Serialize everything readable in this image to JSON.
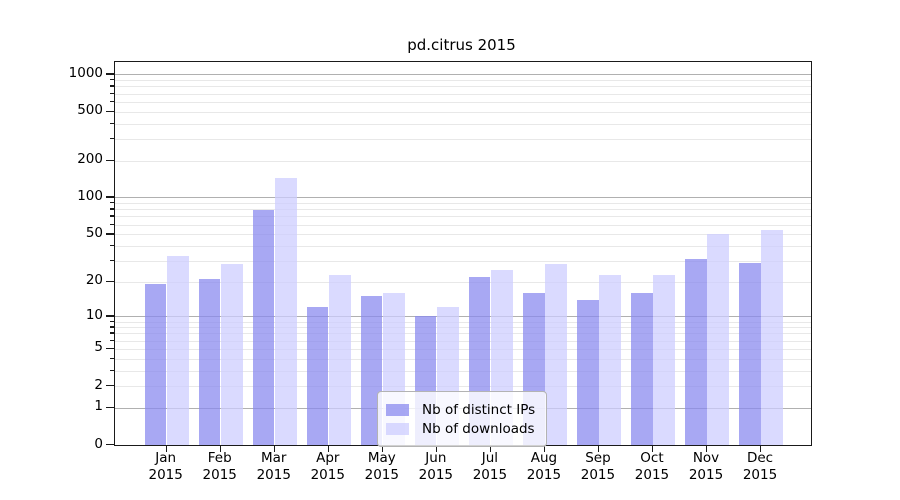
{
  "chart_data": {
    "type": "bar",
    "title": "pd.citrus 2015",
    "categories": [
      "Jan 2015",
      "Feb 2015",
      "Mar 2015",
      "Apr 2015",
      "May 2015",
      "Jun 2015",
      "Jul 2015",
      "Aug 2015",
      "Sep 2015",
      "Oct 2015",
      "Nov 2015",
      "Dec 2015"
    ],
    "series": [
      {
        "name": "Nb of distinct IPs",
        "color": "#8888ee",
        "values": [
          19,
          21,
          79,
          12,
          15,
          10,
          22,
          16,
          14,
          16,
          31,
          29
        ]
      },
      {
        "name": "Nb of downloads",
        "color": "#ccccff",
        "values": [
          33,
          28,
          143,
          23,
          16,
          12,
          25,
          28,
          23,
          23,
          50,
          54
        ]
      }
    ],
    "bar_alpha": 0.73,
    "y_scale": "log10(1+value)",
    "y_ticks": [
      0,
      1,
      2,
      5,
      10,
      20,
      50,
      100,
      200,
      500,
      1000
    ],
    "ylim": [
      0,
      1300
    ],
    "xlabel": "",
    "ylabel": "",
    "grid": "horizontal only; dark major lines at 1,10,100,1000; light minor log lines",
    "legend_position": "inside plot, lower center"
  },
  "colors": {
    "major_grid": "#b0b0b0",
    "minor_grid": "#e8e8e8",
    "axis": "#1a1a1a",
    "text": "#000000",
    "legend_border": "#b3b3b3"
  }
}
